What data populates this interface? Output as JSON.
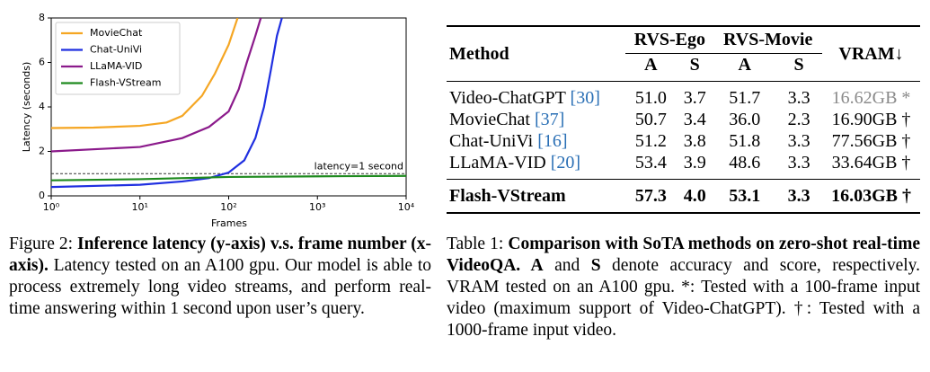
{
  "chart_data": {
    "type": "line",
    "xlabel": "Frames",
    "ylabel": "Latency (seconds)",
    "xscale": "log",
    "xlim": [
      1,
      10000
    ],
    "ylim": [
      0,
      8
    ],
    "xticks": [
      {
        "value": 1,
        "label": "10⁰"
      },
      {
        "value": 10,
        "label": "10¹"
      },
      {
        "value": 100,
        "label": "10²"
      },
      {
        "value": 1000,
        "label": "10³"
      },
      {
        "value": 10000,
        "label": "10⁴"
      }
    ],
    "yticks": [
      0,
      2,
      4,
      6,
      8
    ],
    "legend": "upper left",
    "hline": {
      "value": 1,
      "label": "latency=1 second",
      "color": "#333"
    },
    "series": [
      {
        "name": "MovieChat",
        "color": "#f5a623",
        "x": [
          1,
          3,
          10,
          20,
          30,
          50,
          70,
          100,
          126
        ],
        "values": [
          3.05,
          3.07,
          3.15,
          3.3,
          3.6,
          4.5,
          5.5,
          6.8,
          8.0
        ]
      },
      {
        "name": "Chat-UniVi",
        "color": "#1f2fe0",
        "x": [
          1,
          10,
          30,
          60,
          100,
          150,
          200,
          250,
          300,
          350,
          398
        ],
        "values": [
          0.4,
          0.5,
          0.65,
          0.8,
          1.05,
          1.6,
          2.6,
          4.0,
          5.7,
          7.2,
          8.0
        ]
      },
      {
        "name": "LLaMA-VID",
        "color": "#8b1a8b",
        "x": [
          1,
          10,
          30,
          60,
          100,
          130,
          160,
          200,
          230
        ],
        "values": [
          2.0,
          2.2,
          2.6,
          3.1,
          3.8,
          4.8,
          6.0,
          7.2,
          8.0
        ]
      },
      {
        "name": "Flash-VStream",
        "color": "#1e8a1e",
        "x": [
          1,
          10,
          100,
          1000,
          10000
        ],
        "values": [
          0.7,
          0.75,
          0.85,
          0.88,
          0.9
        ]
      }
    ]
  },
  "figure_caption": [
    {
      "text": "Figure 2: ",
      "bold": false
    },
    {
      "text": "Inference latency (y-axis) v.s. frame number (x-axis).",
      "bold": true
    },
    {
      "text": " Latency tested on an A100 gpu. Our model is able to process extremely long video streams, and perform real-time answering within 1 second upon user’s query.",
      "bold": false
    }
  ],
  "table": {
    "header": {
      "method": "Method",
      "groups": [
        "RVS-Ego",
        "RVS-Movie"
      ],
      "sub": [
        "A",
        "S",
        "A",
        "S"
      ],
      "vram": "VRAM↓"
    },
    "rows": [
      {
        "method": "Video-ChatGPT",
        "ref": "[30]",
        "cells": [
          "51.0",
          "3.7",
          "51.7",
          "3.3"
        ],
        "vram": "16.62GB *",
        "vram_color": "#8a8a8a",
        "bold": false
      },
      {
        "method": "MovieChat",
        "ref": "[37]",
        "cells": [
          "50.7",
          "3.4",
          "36.0",
          "2.3"
        ],
        "vram": "16.90GB †",
        "bold": false
      },
      {
        "method": "Chat-UniVi",
        "ref": "[16]",
        "cells": [
          "51.2",
          "3.8",
          "51.8",
          "3.3"
        ],
        "vram": "77.56GB †",
        "bold": false
      },
      {
        "method": "LLaMA-VID",
        "ref": "[20]",
        "cells": [
          "53.4",
          "3.9",
          "48.6",
          "3.3"
        ],
        "vram": "33.64GB †",
        "bold": false
      },
      {
        "method": "Flash-VStream",
        "cells": [
          "57.3",
          "4.0",
          "53.1",
          "3.3"
        ],
        "vram": "16.03GB †",
        "bold": true
      }
    ]
  },
  "table_caption": [
    {
      "text": "Table 1: ",
      "bold": false
    },
    {
      "text": "Comparison with SoTA methods on zero-shot real-time VideoQA.",
      "bold": true
    },
    {
      "text": " A",
      "bold": true
    },
    {
      "text": " and ",
      "bold": false
    },
    {
      "text": "S",
      "bold": true
    },
    {
      "text": " denote accuracy and score, respectively. VRAM tested on an A100 gpu. *: Tested with a 100-frame input video (maximum support of Video-ChatGPT). †: Tested with a 1000-frame input video.",
      "bold": false
    }
  ]
}
